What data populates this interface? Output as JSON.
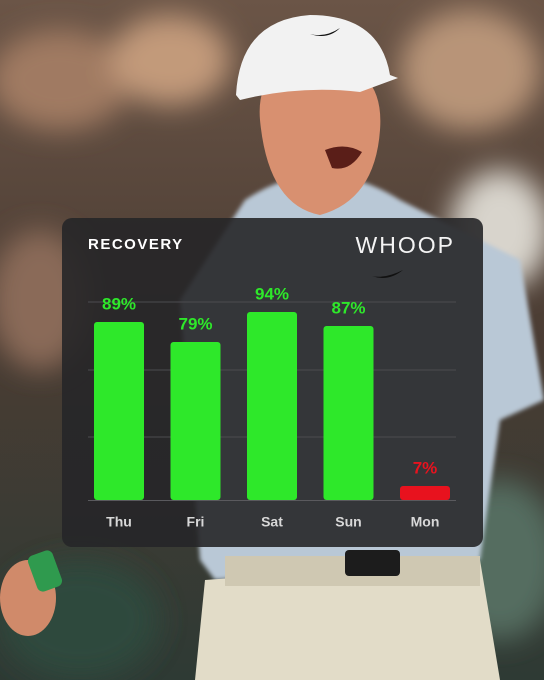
{
  "chart_data": {
    "type": "bar",
    "title": "RECOVERY",
    "logo": "WHOOP",
    "categories": [
      "Thu",
      "Fri",
      "Sat",
      "Sun",
      "Mon"
    ],
    "values": [
      89,
      79,
      94,
      87,
      7
    ],
    "value_labels": [
      "89%",
      "79%",
      "94%",
      "87%",
      "7%"
    ],
    "colors": [
      "#2ee82a",
      "#2ee82a",
      "#2ee82a",
      "#2ee82a",
      "#e8121e"
    ],
    "ylim": [
      0,
      100
    ]
  }
}
